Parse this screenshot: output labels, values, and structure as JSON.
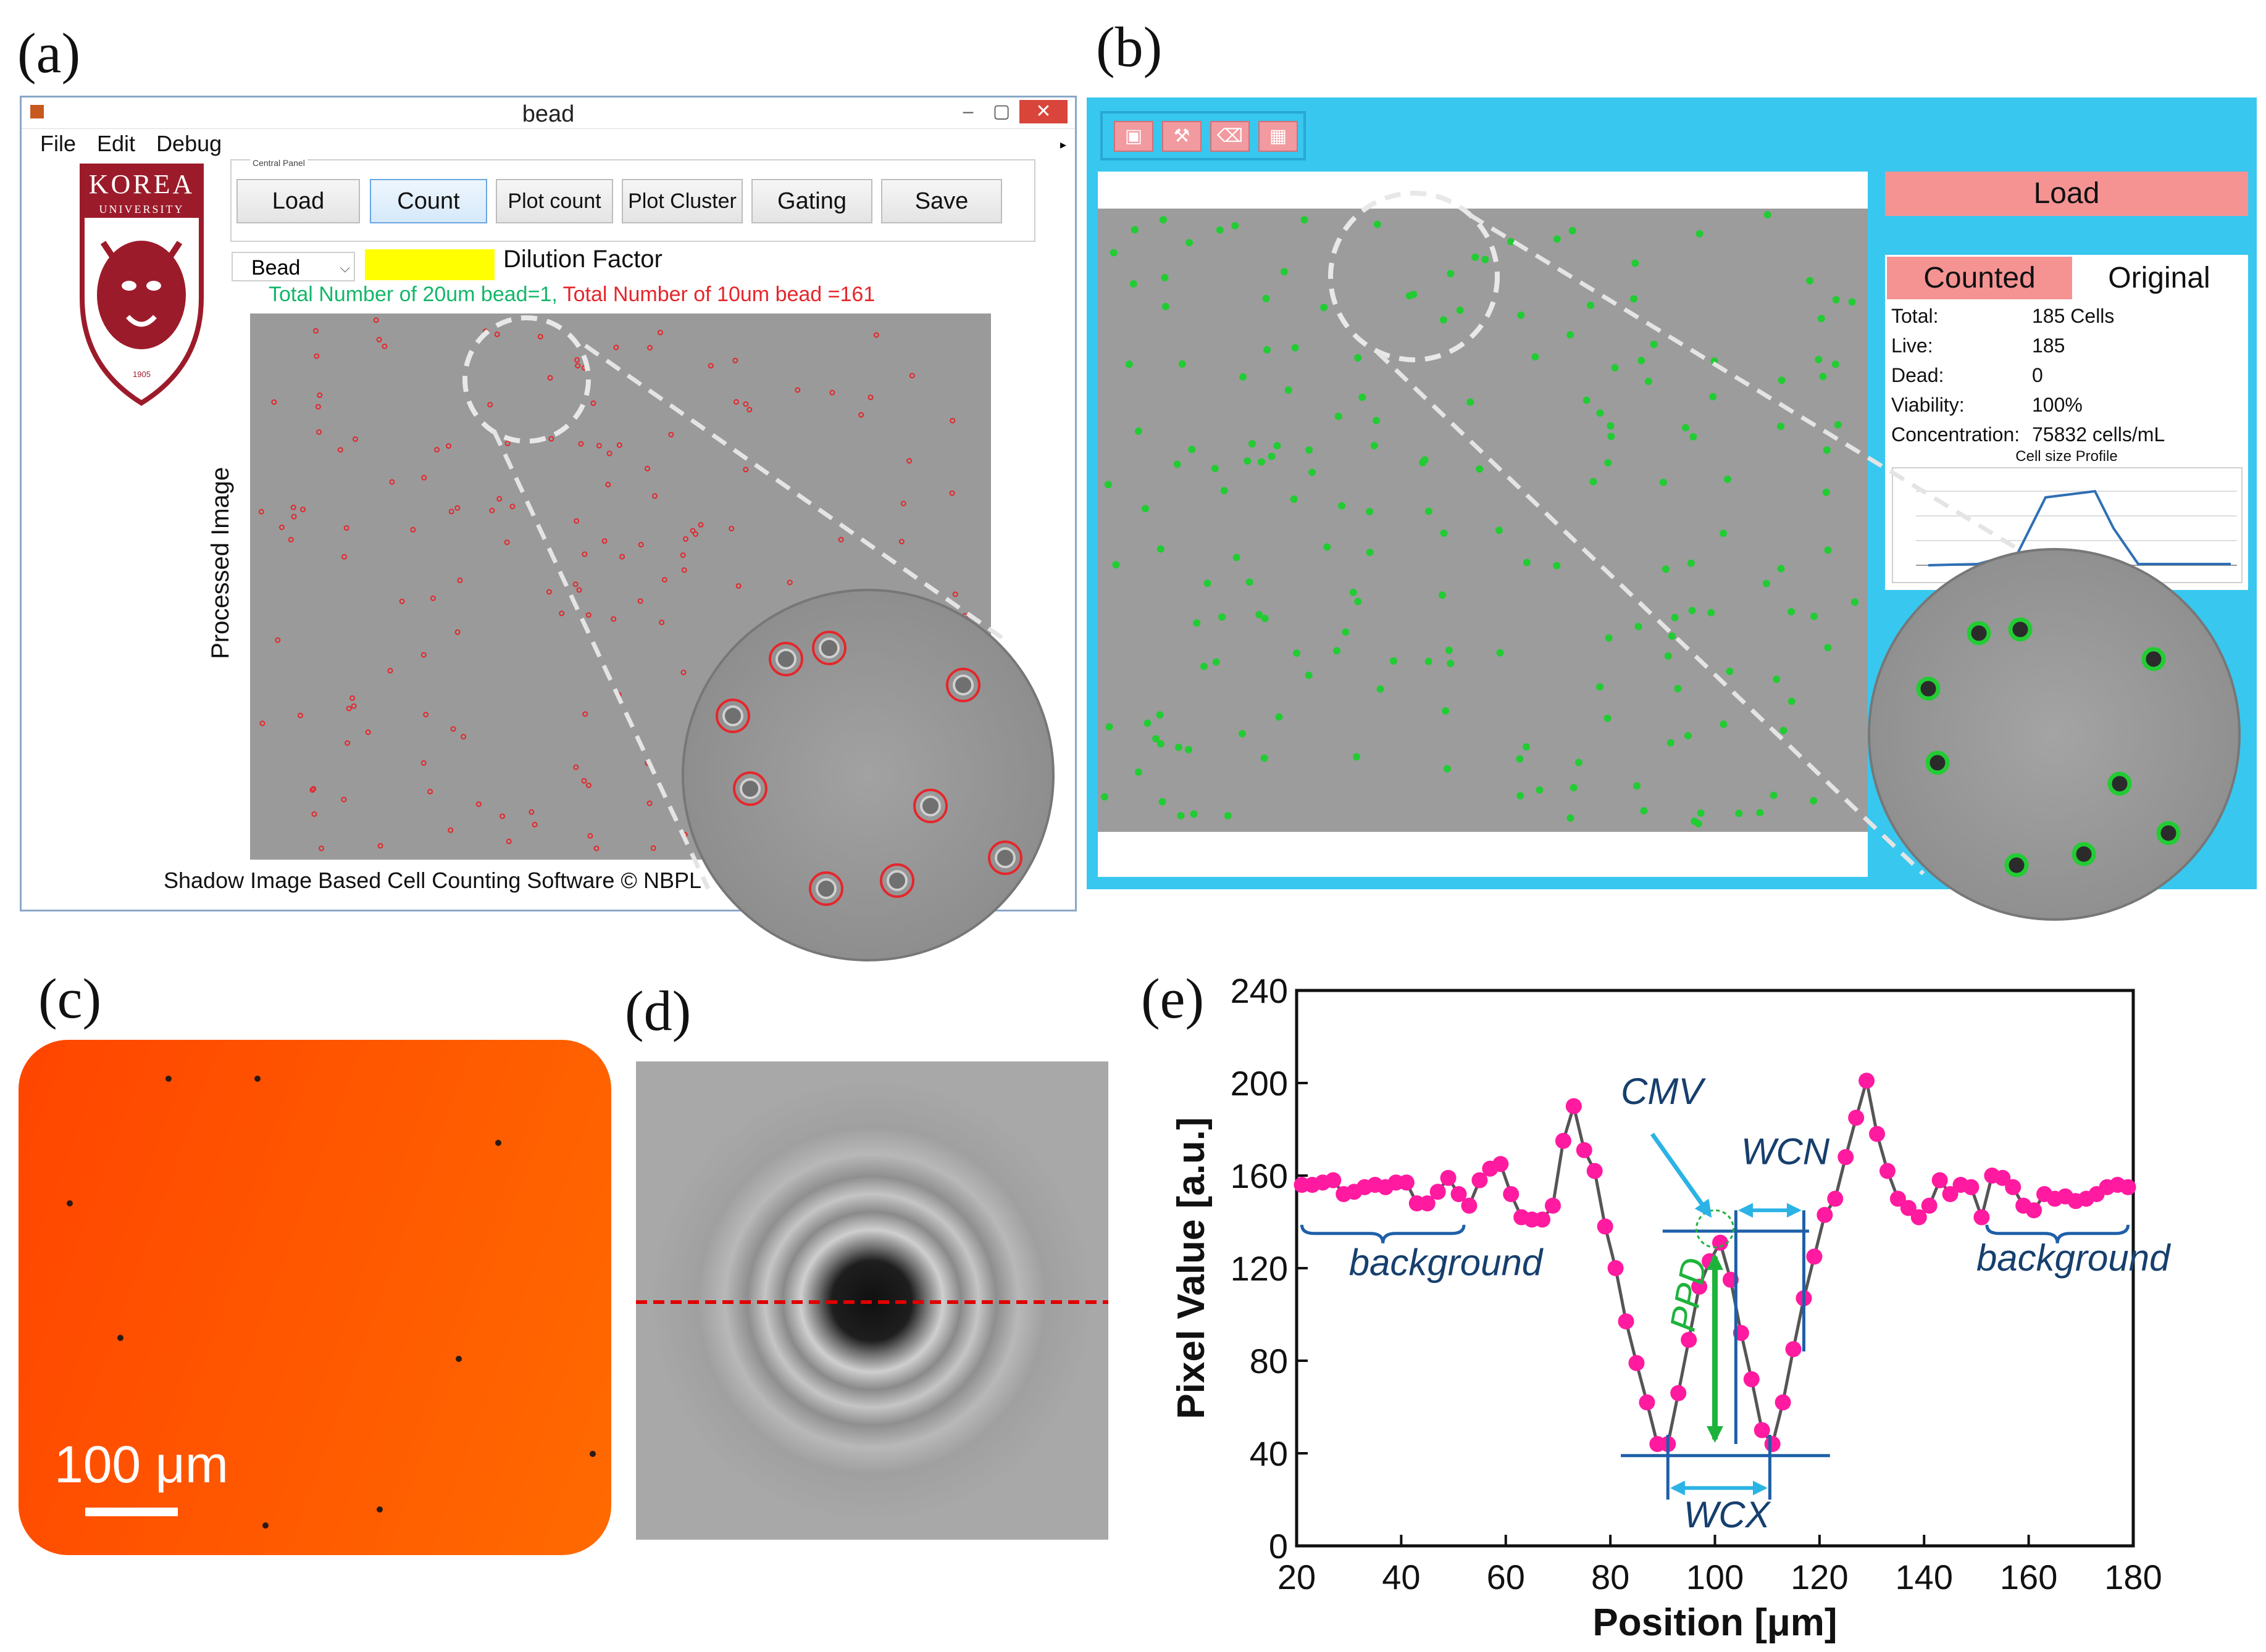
{
  "panel_labels": {
    "a": "(a)",
    "b": "(b)",
    "c": "(c)",
    "d": "(d)",
    "e": "(e)"
  },
  "window_a": {
    "title": "bead",
    "menu": [
      "File",
      "Edit",
      "Debug"
    ],
    "logo_text": "KOREA",
    "logo_subtext": "UNIVERSITY",
    "logo_year": "1905",
    "control_panel_title": "Central Panel",
    "buttons": [
      "Load",
      "Count",
      "Plot count",
      "Plot Cluster",
      "Gating",
      "Save"
    ],
    "bead_select": "Bead",
    "dilution_label": "Dilution Factor",
    "total_green": "Total Number of 20um bead=1,",
    "total_red": "Total Number of 10um bead =161",
    "processed_label": "Processed Image",
    "footer": "Shadow Image Based Cell Counting Software © NBPL"
  },
  "window_b": {
    "load_label": "Load",
    "tab_counted": "Counted",
    "tab_original": "Original",
    "info": [
      {
        "label": "Total:",
        "value": "185 Cells"
      },
      {
        "label": "Live:",
        "value": "185"
      },
      {
        "label": "Dead:",
        "value": "0"
      },
      {
        "label": "Viability:",
        "value": "100%"
      },
      {
        "label": "Concentration:",
        "value": "75832 cells/mL"
      }
    ],
    "profile_title": "Cell size Profile"
  },
  "panel_c": {
    "scale_label": "100 μm"
  },
  "colors": {
    "accent_blue": "#38c7ef",
    "pink_button": "#f59393",
    "marker_pink": "#ff1aa0",
    "cell_green": "#22cc33",
    "bead_red": "#e5262b"
  },
  "chart_data": {
    "type": "scatter",
    "title": "",
    "xlabel": "Position [μm]",
    "ylabel": "Pixel Value [a.u.]",
    "xlim": [
      20,
      180
    ],
    "ylim": [
      0,
      240
    ],
    "xticks": [
      "20",
      "40",
      "60",
      "80",
      "100",
      "120",
      "140",
      "160",
      "180"
    ],
    "yticks": [
      "0",
      "40",
      "80",
      "120",
      "160",
      "200",
      "240"
    ],
    "series": [
      {
        "name": "profile",
        "x": [
          21,
          23,
          25,
          27,
          29,
          31,
          33,
          35,
          37,
          39,
          41,
          43,
          45,
          47,
          49,
          51,
          53,
          55,
          57,
          59,
          61,
          63,
          65,
          67,
          69,
          71,
          73,
          75,
          77,
          79,
          81,
          83,
          85,
          87,
          89,
          91,
          93,
          95,
          97,
          99,
          101,
          103,
          105,
          107,
          109,
          111,
          113,
          115,
          117,
          119,
          121,
          123,
          125,
          127,
          129,
          131,
          133,
          135,
          137,
          139,
          141,
          143,
          145,
          147,
          149,
          151,
          153,
          155,
          157,
          159,
          161,
          163,
          165,
          167,
          169,
          171,
          173,
          175,
          177,
          179
        ],
        "y": [
          156,
          156,
          157,
          158,
          152,
          153,
          155,
          156,
          155,
          157,
          157,
          148,
          148,
          153,
          159,
          152,
          147,
          158,
          163,
          165,
          152,
          142,
          141,
          141,
          147,
          175,
          190,
          171,
          162,
          138,
          120,
          97,
          79,
          62,
          44,
          44,
          66,
          89,
          112,
          123,
          131,
          115,
          92,
          72,
          50,
          44,
          62,
          85,
          107,
          125,
          143,
          150,
          168,
          185,
          201,
          178,
          162,
          150,
          146,
          142,
          147,
          158,
          152,
          156,
          155,
          142,
          160,
          159,
          155,
          147,
          145,
          152,
          150,
          151,
          149,
          150,
          152,
          155,
          156,
          155
        ]
      }
    ],
    "annotations": [
      "CMV",
      "WCN",
      "PPD",
      "WCX",
      "background",
      "background"
    ],
    "legend": "none",
    "grid": false
  }
}
